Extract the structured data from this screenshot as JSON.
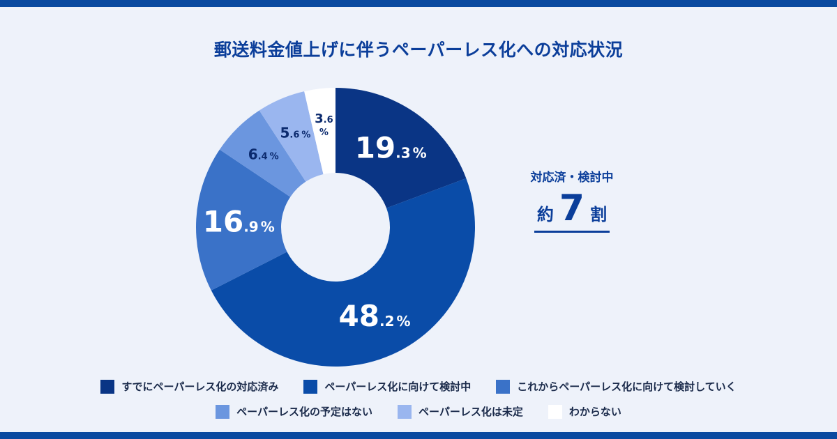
{
  "title": "郵送料金値上げに伴うペーパーレス化への対応状況",
  "summary": {
    "label": "対応済・検討中",
    "prefix": "約",
    "value": "7",
    "suffix": "割"
  },
  "colors": {
    "background": "#eef2fa",
    "brand": "#0a4aa0",
    "title": "#0b3e9a"
  },
  "chart_data": {
    "type": "pie",
    "donut": true,
    "series": [
      {
        "name": "すでにペーパーレス化の対応済み",
        "value": 19.3,
        "color": "#0a3585",
        "int": "19",
        "dec": ".3",
        "unit": "%",
        "labelColor": "#ffffff",
        "labelSize": "large"
      },
      {
        "name": "ペーパーレス化に向けて検討中",
        "value": 48.2,
        "color": "#0a4ca8",
        "int": "48",
        "dec": ".2",
        "unit": "%",
        "labelColor": "#ffffff",
        "labelSize": "large"
      },
      {
        "name": "これからペーパーレス化に向けて検討していく",
        "value": 16.9,
        "color": "#3a72c8",
        "int": "16",
        "dec": ".9",
        "unit": "%",
        "labelColor": "#ffffff",
        "labelSize": "large"
      },
      {
        "name": "ペーパーレス化の予定はない",
        "value": 6.4,
        "color": "#6b96df",
        "int": "6",
        "dec": ".4",
        "unit": "%",
        "labelColor": "#0b2a6e",
        "labelSize": "small"
      },
      {
        "name": "ペーパーレス化は未定",
        "value": 5.6,
        "color": "#9ab6ef",
        "int": "5",
        "dec": ".6",
        "unit": "%",
        "labelColor": "#0b2a6e",
        "labelSize": "small"
      },
      {
        "name": "わからない",
        "value": 3.6,
        "color": "#ffffff",
        "int": "3",
        "dec": ".6",
        "unit": "%",
        "labelColor": "#0b2a6e",
        "labelSize": "tiny"
      }
    ]
  }
}
